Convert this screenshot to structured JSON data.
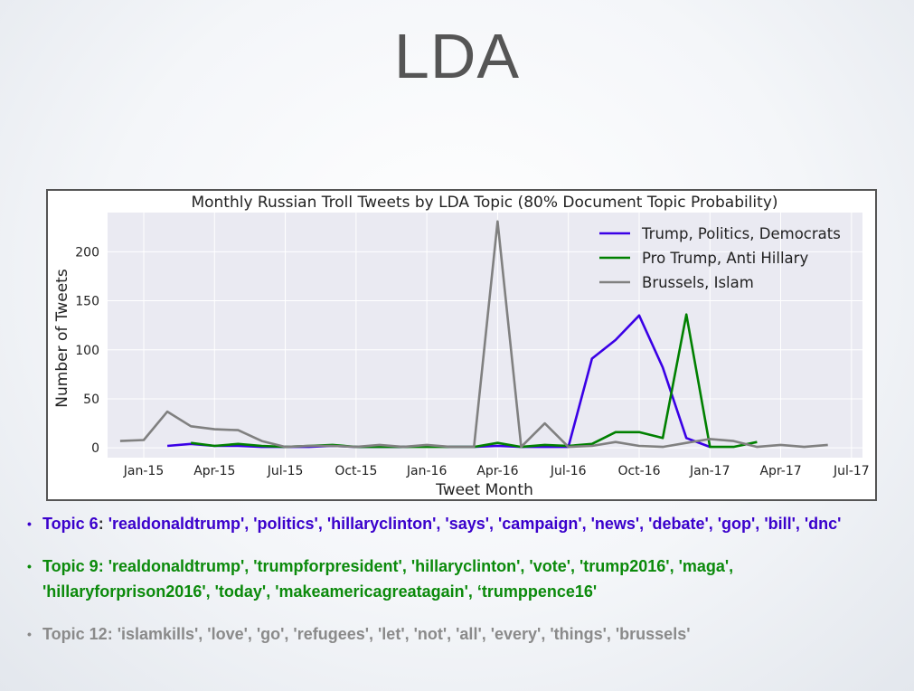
{
  "slide": {
    "title": "LDA"
  },
  "chart_data": {
    "type": "line",
    "title": "Monthly Russian Troll Tweets by LDA Topic (80% Document Topic Probability)",
    "xlabel": "Tweet Month",
    "ylabel": "Number of Tweets",
    "x_ticks": [
      "Jan-15",
      "Apr-15",
      "Jul-15",
      "Oct-15",
      "Jan-16",
      "Apr-16",
      "Jul-16",
      "Oct-16",
      "Jan-17",
      "Apr-17",
      "Jul-17"
    ],
    "y_ticks": [
      0,
      50,
      100,
      150,
      200
    ],
    "ylim": [
      -10,
      240
    ],
    "xlim": [
      "2014-11-15",
      "2017-07-15"
    ],
    "grid": true,
    "legend_position": "top-right",
    "series": [
      {
        "name": "Trump, Politics, Democrats",
        "color": "#3a00e6",
        "x": [
          "2015-02",
          "2015-03",
          "2015-04",
          "2015-05",
          "2015-06",
          "2015-07",
          "2015-08",
          "2015-09",
          "2015-10",
          "2015-11",
          "2015-12",
          "2016-01",
          "2016-02",
          "2016-03",
          "2016-04",
          "2016-05",
          "2016-06",
          "2016-07",
          "2016-08",
          "2016-09",
          "2016-10",
          "2016-11",
          "2016-12",
          "2017-01"
        ],
        "values": [
          2,
          4,
          2,
          2,
          1,
          1,
          1,
          2,
          1,
          1,
          1,
          2,
          1,
          1,
          2,
          1,
          1,
          1,
          91,
          110,
          135,
          82,
          10,
          1
        ]
      },
      {
        "name": "Pro Trump, Anti Hillary",
        "color": "#008000",
        "x": [
          "2015-03",
          "2015-04",
          "2015-05",
          "2015-06",
          "2015-07",
          "2015-08",
          "2015-09",
          "2015-10",
          "2015-11",
          "2015-12",
          "2016-01",
          "2016-02",
          "2016-03",
          "2016-04",
          "2016-05",
          "2016-06",
          "2016-07",
          "2016-08",
          "2016-09",
          "2016-10",
          "2016-11",
          "2016-12",
          "2017-01",
          "2017-02",
          "2017-03"
        ],
        "values": [
          5,
          2,
          4,
          2,
          1,
          2,
          3,
          1,
          1,
          1,
          1,
          1,
          1,
          5,
          1,
          3,
          2,
          4,
          16,
          16,
          10,
          136,
          1,
          1,
          6
        ]
      },
      {
        "name": "Brussels, Islam",
        "color": "#808080",
        "x": [
          "2014-12",
          "2015-01",
          "2015-02",
          "2015-03",
          "2015-04",
          "2015-05",
          "2015-06",
          "2015-07",
          "2015-08",
          "2015-09",
          "2015-10",
          "2015-11",
          "2015-12",
          "2016-01",
          "2016-02",
          "2016-03",
          "2016-04",
          "2016-05",
          "2016-06",
          "2016-07",
          "2016-08",
          "2016-09",
          "2016-10",
          "2016-11",
          "2016-12",
          "2017-01",
          "2017-02",
          "2017-03",
          "2017-04",
          "2017-05",
          "2017-06"
        ],
        "values": [
          7,
          8,
          37,
          22,
          19,
          18,
          7,
          1,
          2,
          2,
          1,
          3,
          1,
          3,
          1,
          1,
          231,
          1,
          25,
          1,
          2,
          6,
          2,
          1,
          5,
          9,
          7,
          1,
          3,
          1,
          3
        ]
      }
    ]
  },
  "topics": [
    {
      "label": "Topic 6",
      "separator": ": ",
      "words": "'realdonaldtrump', 'politics', 'hillaryclinton', 'says', 'campaign', 'news', 'debate', 'gop', 'bill', 'dnc'",
      "color": "#3a00cc"
    },
    {
      "label": "Topic 9",
      "separator": ": ",
      "words": "'realdonaldtrump', 'trumpforpresident', 'hillaryclinton', 'vote', 'trump2016', 'maga', 'hillaryforprison2016', 'today', 'makeamericagreatagain', ‘trumppence16'",
      "color": "#0b8a0b"
    },
    {
      "label": "Topic 12",
      "separator": ": ",
      "words": "'islamkills', 'love', 'go', 'refugees', 'let', 'not', 'all', 'every', 'things', 'brussels'",
      "color": "#8a8a8a"
    }
  ]
}
